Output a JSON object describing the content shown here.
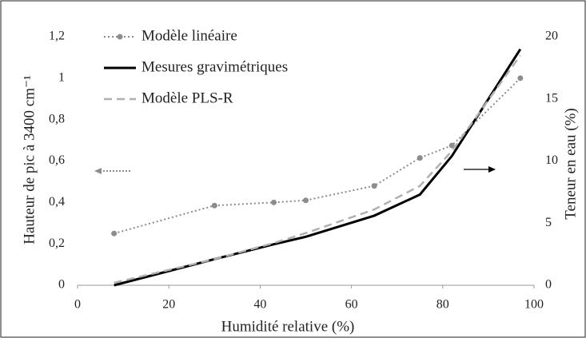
{
  "chart_data": {
    "type": "line",
    "xlabel": "Humidité relative (%)",
    "ylabel": "Hauteur de pic à 3400 cm⁻¹",
    "y2label": "Teneur en eau (%)",
    "xlim": [
      0,
      100
    ],
    "xticks": [
      0,
      20,
      40,
      60,
      80,
      100
    ],
    "ylim": [
      0,
      1.2
    ],
    "yticks": [
      0,
      {
        "value": 0.2,
        "label": "0,2"
      },
      {
        "value": 0.4,
        "label": "0,4"
      },
      {
        "value": 0.6,
        "label": "0,6"
      },
      {
        "value": 0.8,
        "label": "0,8"
      },
      1,
      {
        "value": 1.2,
        "label": "1,2"
      }
    ],
    "y2lim": [
      0,
      20
    ],
    "y2ticks": [
      0,
      5,
      10,
      15,
      20
    ],
    "x": [
      8,
      30,
      43,
      50,
      65,
      75,
      82,
      97
    ],
    "series": [
      {
        "name": "Modèle linéaire",
        "color": "#8c8c8c",
        "values": [
          0.25,
          0.385,
          0.4,
          0.41,
          0.48,
          0.615,
          0.675,
          1.0
        ]
      },
      {
        "name": "Mesures gravimétriques",
        "color": "#000000",
        "axis": "y2",
        "values": [
          0,
          2.1,
          3.3,
          3.9,
          5.6,
          7.3,
          10.4,
          19.0
        ]
      },
      {
        "name": "Modèle PLS-R",
        "color": "#b0b0b0",
        "axis": "y2",
        "values": [
          0.2,
          2.1,
          3.4,
          4.2,
          6.1,
          8.0,
          10.8,
          18.5
        ]
      }
    ]
  }
}
